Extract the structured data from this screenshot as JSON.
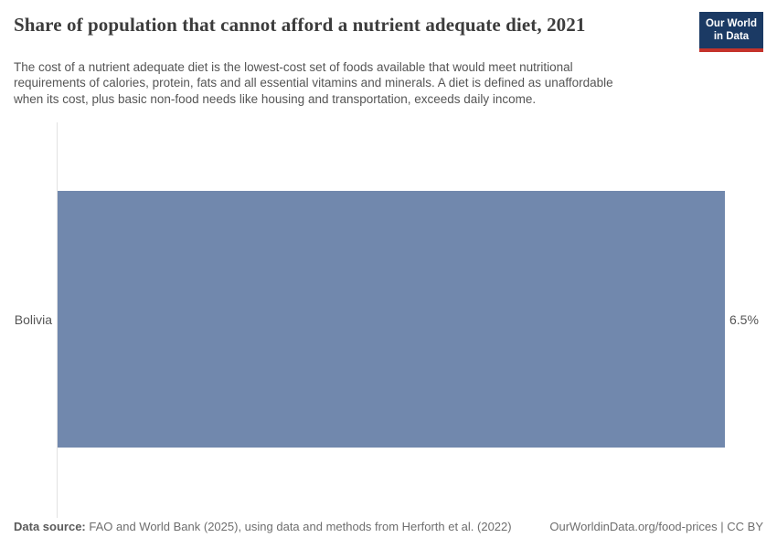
{
  "header": {
    "title": "Share of population that cannot afford a nutrient adequate diet, 2021",
    "logo": {
      "line1": "Our World",
      "line2": "in Data",
      "bg_color": "#1b3a64",
      "accent_color": "#c5332b"
    }
  },
  "subtitle": {
    "lines": [
      "The cost of a nutrient adequate diet is the lowest-cost set of foods available that would meet nutritional",
      "requirements of calories, protein, fats and all essential vitamins and minerals. A diet is defined as unaffordable",
      "when its cost, plus basic non-food needs like housing and transportation, exceeds daily income."
    ]
  },
  "chart_data": {
    "type": "bar",
    "orientation": "horizontal",
    "title": "Share of population that cannot afford a nutrient adequate diet, 2021",
    "categories": [
      "Bolivia"
    ],
    "values": [
      6.5
    ],
    "value_labels": [
      "6.5%"
    ],
    "unit": "%",
    "xlim": [
      0,
      6.5
    ],
    "bar_color": "#7188ad",
    "axis_line_color": "#e2e2e2",
    "grid": false,
    "legend": false
  },
  "footer": {
    "data_source_label": "Data source:",
    "data_source_text": "FAO and World Bank (2025), using data and methods from Herforth et al. (2022)",
    "link_text": "OurWorldinData.org/food-prices | CC BY"
  }
}
